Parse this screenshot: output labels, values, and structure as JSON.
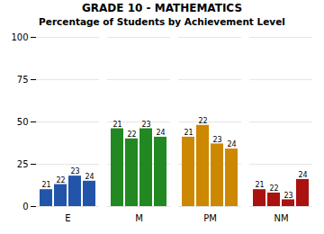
{
  "chart_data": {
    "type": "bar",
    "title": "GRADE 10 - MATHEMATICS",
    "subtitle": "Percentage of Students by Achievement Level",
    "categories": [
      "E",
      "M",
      "PM",
      "NM"
    ],
    "series": [
      {
        "name": "21",
        "values": [
          10,
          46,
          41,
          10
        ]
      },
      {
        "name": "22",
        "values": [
          13,
          40,
          48,
          8
        ]
      },
      {
        "name": "23",
        "values": [
          18,
          46,
          37,
          4
        ]
      },
      {
        "name": "24",
        "values": [
          15,
          41,
          34,
          16
        ]
      }
    ],
    "colors": [
      "#2255aa",
      "#228822",
      "#cc8800",
      "#aa1111"
    ],
    "ylim": [
      0,
      100
    ],
    "yticks": [
      0,
      25,
      50,
      75,
      100
    ],
    "grid": true
  }
}
